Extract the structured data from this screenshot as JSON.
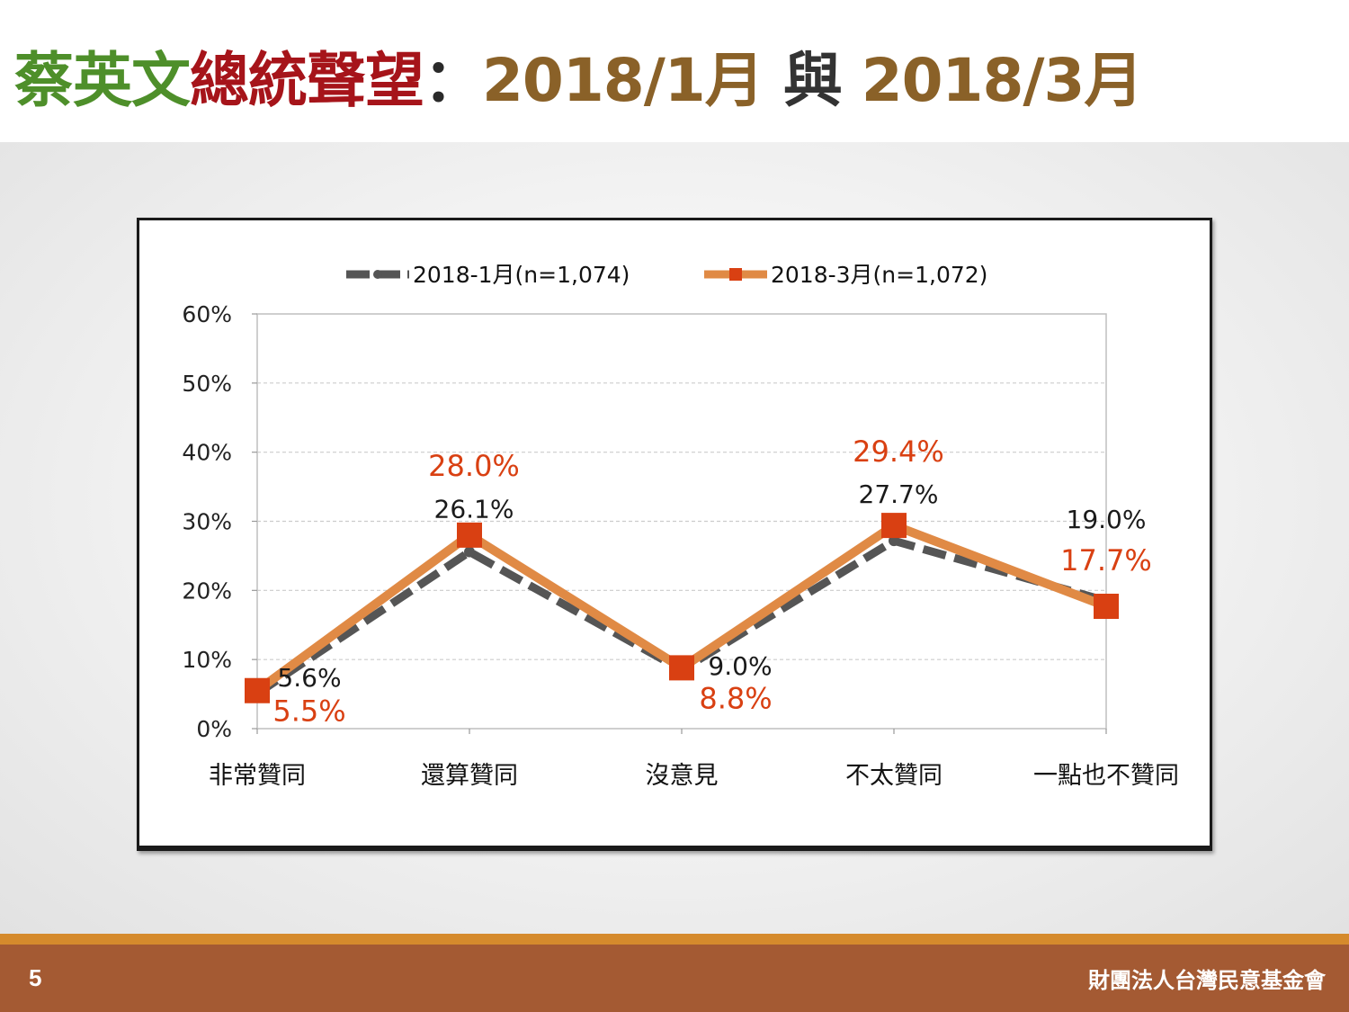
{
  "title": {
    "part1": "蔡英文",
    "part2": "總統聲望",
    "part3": "：",
    "part4": "2018/1月",
    "part5": " 與 ",
    "part6": "2018/3月"
  },
  "colors": {
    "title_green": "#4e8f2a",
    "title_red": "#a6141a",
    "title_brown": "#8a6128",
    "series_jan": "#555555",
    "series_mar_line": "#e08a45",
    "series_mar_marker": "#d94012",
    "label_red": "#d94012",
    "footer": "#a45a33",
    "footer_accent": "#d58a2c"
  },
  "footer": {
    "page_number": "5",
    "organization": "財團法人台灣民意基金會"
  },
  "chart_data": {
    "type": "line",
    "categories": [
      "非常贊同",
      "還算贊同",
      "沒意見",
      "不太贊同",
      "一點也不贊同"
    ],
    "series": [
      {
        "name": "2018-1月(n=1,074)",
        "values": [
          5.6,
          26.1,
          9.0,
          27.7,
          19.0
        ],
        "labels": [
          "5.6%",
          "26.1%",
          "9.0%",
          "27.7%",
          "19.0%"
        ],
        "style": "dashed",
        "color": "#555555"
      },
      {
        "name": "2018-3月(n=1,072)",
        "values": [
          5.5,
          28.0,
          8.8,
          29.4,
          17.7
        ],
        "labels": [
          "5.5%",
          "28.0%",
          "8.8%",
          "29.4%",
          "17.7%"
        ],
        "style": "solid-square-markers",
        "color": "#e08a45"
      }
    ],
    "yticks": [
      "0%",
      "10%",
      "20%",
      "30%",
      "40%",
      "50%",
      "60%"
    ],
    "ylim": [
      0,
      60
    ],
    "grid": "horizontal dashed",
    "legend": "top-center"
  }
}
